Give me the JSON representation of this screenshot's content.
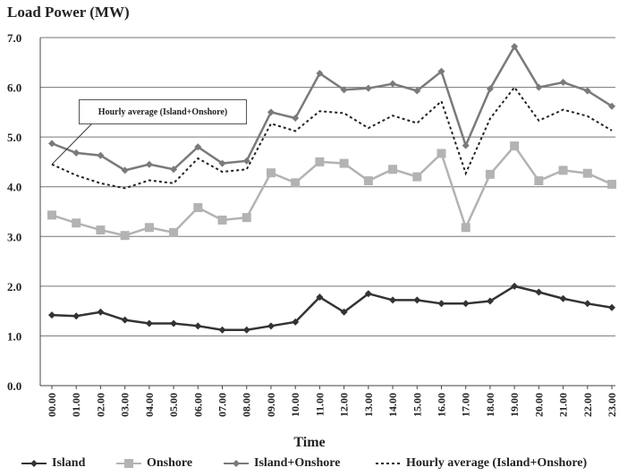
{
  "chart_data": {
    "type": "line",
    "ylabel": "Load Power (MW)",
    "xlabel": "Time",
    "ylim": [
      0,
      7
    ],
    "yticks": [
      "0.0",
      "1.0",
      "2.0",
      "3.0",
      "4.0",
      "5.0",
      "6.0",
      "7.0"
    ],
    "grid": "horizontal",
    "legend_placement": "bottom",
    "categories": [
      "00.00",
      "01.00",
      "02.00",
      "03.00",
      "04.00",
      "05.00",
      "06.00",
      "07.00",
      "08.00",
      "09.00",
      "10.00",
      "11.00",
      "12.00",
      "13.00",
      "14.00",
      "15.00",
      "16.00",
      "17.00",
      "18.00",
      "19.00",
      "20.00",
      "21.00",
      "22.00",
      "23.00"
    ],
    "series": [
      {
        "name": "Island",
        "color": "#333333",
        "marker": "diamond",
        "values": [
          1.42,
          1.4,
          1.48,
          1.32,
          1.25,
          1.25,
          1.2,
          1.12,
          1.12,
          1.2,
          1.28,
          1.78,
          1.48,
          1.85,
          1.72,
          1.72,
          1.65,
          1.65,
          1.7,
          2.0,
          1.88,
          1.75,
          1.65,
          1.57
        ]
      },
      {
        "name": "Onshore",
        "color": "#b3b3b3",
        "marker": "square",
        "values": [
          3.43,
          3.27,
          3.13,
          3.02,
          3.18,
          3.08,
          3.58,
          3.33,
          3.38,
          4.28,
          4.08,
          4.5,
          4.47,
          4.12,
          4.35,
          4.2,
          4.67,
          3.18,
          4.25,
          4.82,
          4.12,
          4.33,
          4.27,
          4.05
        ]
      },
      {
        "name": "Island+Onshore",
        "color": "#7a7a7a",
        "marker": "diamond",
        "values": [
          4.87,
          4.68,
          4.63,
          4.33,
          4.45,
          4.35,
          4.8,
          4.47,
          4.52,
          5.5,
          5.38,
          6.28,
          5.95,
          5.98,
          6.07,
          5.93,
          6.32,
          4.83,
          5.97,
          6.82,
          6.0,
          6.1,
          5.93,
          5.62
        ]
      },
      {
        "name": "Hourly average (Island+Onshore)",
        "color": "#222222",
        "marker": "none",
        "dash": "dotted",
        "values": [
          4.45,
          4.23,
          4.07,
          3.97,
          4.13,
          4.07,
          4.57,
          4.3,
          4.35,
          5.27,
          5.12,
          5.52,
          5.48,
          5.18,
          5.43,
          5.28,
          5.72,
          4.27,
          5.37,
          6.0,
          5.33,
          5.55,
          5.42,
          5.13
        ]
      }
    ],
    "annotations": [
      {
        "text": "Hourly average (Island+Onshore)",
        "points_to_category": "00.00",
        "points_to_series": "Hourly average (Island+Onshore)"
      }
    ]
  }
}
